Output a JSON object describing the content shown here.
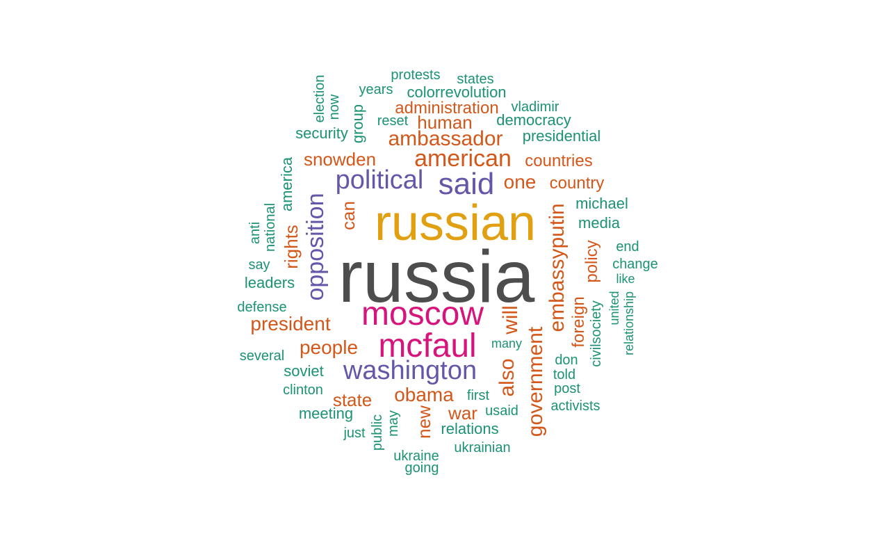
{
  "colors": {
    "gray": "#4d4d4d",
    "gold": "#e0a012",
    "magenta": "#d6147c",
    "purple": "#6257a8",
    "orange": "#d4571a",
    "green": "#1b9274"
  },
  "words": [
    {
      "text": "russia",
      "color": "gray",
      "rotated": false
    },
    {
      "text": "russian",
      "color": "gold",
      "rotated": false
    },
    {
      "text": "moscow",
      "color": "magenta",
      "rotated": false
    },
    {
      "text": "mcfaul",
      "color": "magenta",
      "rotated": false
    },
    {
      "text": "washington",
      "color": "purple",
      "rotated": false
    },
    {
      "text": "said",
      "color": "purple",
      "rotated": false
    },
    {
      "text": "political",
      "color": "purple",
      "rotated": false
    },
    {
      "text": "opposition",
      "color": "purple",
      "rotated": true
    },
    {
      "text": "american",
      "color": "orange",
      "rotated": false
    },
    {
      "text": "ambassador",
      "color": "orange",
      "rotated": false
    },
    {
      "text": "embassyputin",
      "color": "orange",
      "rotated": true
    },
    {
      "text": "government",
      "color": "orange",
      "rotated": true
    },
    {
      "text": "president",
      "color": "orange",
      "rotated": false
    },
    {
      "text": "people",
      "color": "orange",
      "rotated": false
    },
    {
      "text": "obama",
      "color": "orange",
      "rotated": false
    },
    {
      "text": "one",
      "color": "orange",
      "rotated": false
    },
    {
      "text": "also",
      "color": "orange",
      "rotated": true
    },
    {
      "text": "will",
      "color": "orange",
      "rotated": true
    },
    {
      "text": "snowden",
      "color": "orange",
      "rotated": false
    },
    {
      "text": "rights",
      "color": "orange",
      "rotated": true
    },
    {
      "text": "can",
      "color": "orange",
      "rotated": true
    },
    {
      "text": "state",
      "color": "orange",
      "rotated": false
    },
    {
      "text": "war",
      "color": "orange",
      "rotated": false
    },
    {
      "text": "new",
      "color": "orange",
      "rotated": true
    },
    {
      "text": "human",
      "color": "orange",
      "rotated": false
    },
    {
      "text": "administration",
      "color": "orange",
      "rotated": false
    },
    {
      "text": "countries",
      "color": "orange",
      "rotated": false
    },
    {
      "text": "country",
      "color": "orange",
      "rotated": false
    },
    {
      "text": "policy",
      "color": "orange",
      "rotated": true
    },
    {
      "text": "foreign",
      "color": "orange",
      "rotated": true
    },
    {
      "text": "protests",
      "color": "green",
      "rotated": false
    },
    {
      "text": "states",
      "color": "green",
      "rotated": false
    },
    {
      "text": "years",
      "color": "green",
      "rotated": false
    },
    {
      "text": "colorrevolution",
      "color": "green",
      "rotated": false
    },
    {
      "text": "vladimir",
      "color": "green",
      "rotated": false
    },
    {
      "text": "reset",
      "color": "green",
      "rotated": false
    },
    {
      "text": "democracy",
      "color": "green",
      "rotated": false
    },
    {
      "text": "security",
      "color": "green",
      "rotated": false
    },
    {
      "text": "presidential",
      "color": "green",
      "rotated": false
    },
    {
      "text": "election",
      "color": "green",
      "rotated": true
    },
    {
      "text": "now",
      "color": "green",
      "rotated": true
    },
    {
      "text": "group",
      "color": "green",
      "rotated": true
    },
    {
      "text": "america",
      "color": "green",
      "rotated": true
    },
    {
      "text": "national",
      "color": "green",
      "rotated": true
    },
    {
      "text": "anti",
      "color": "green",
      "rotated": true
    },
    {
      "text": "michael",
      "color": "green",
      "rotated": false
    },
    {
      "text": "media",
      "color": "green",
      "rotated": false
    },
    {
      "text": "end",
      "color": "green",
      "rotated": false
    },
    {
      "text": "change",
      "color": "green",
      "rotated": false
    },
    {
      "text": "like",
      "color": "green",
      "rotated": false
    },
    {
      "text": "say",
      "color": "green",
      "rotated": false
    },
    {
      "text": "leaders",
      "color": "green",
      "rotated": false
    },
    {
      "text": "defense",
      "color": "green",
      "rotated": false
    },
    {
      "text": "united",
      "color": "green",
      "rotated": true
    },
    {
      "text": "relationship",
      "color": "green",
      "rotated": true
    },
    {
      "text": "civilsociety",
      "color": "green",
      "rotated": true
    },
    {
      "text": "many",
      "color": "green",
      "rotated": false
    },
    {
      "text": "don",
      "color": "green",
      "rotated": false
    },
    {
      "text": "told",
      "color": "green",
      "rotated": false
    },
    {
      "text": "post",
      "color": "green",
      "rotated": false
    },
    {
      "text": "activists",
      "color": "green",
      "rotated": false
    },
    {
      "text": "several",
      "color": "green",
      "rotated": false
    },
    {
      "text": "soviet",
      "color": "green",
      "rotated": false
    },
    {
      "text": "clinton",
      "color": "green",
      "rotated": false
    },
    {
      "text": "meeting",
      "color": "green",
      "rotated": false
    },
    {
      "text": "first",
      "color": "green",
      "rotated": false
    },
    {
      "text": "usaid",
      "color": "green",
      "rotated": false
    },
    {
      "text": "relations",
      "color": "green",
      "rotated": false
    },
    {
      "text": "just",
      "color": "green",
      "rotated": false
    },
    {
      "text": "public",
      "color": "green",
      "rotated": true
    },
    {
      "text": "may",
      "color": "green",
      "rotated": true
    },
    {
      "text": "ukraine",
      "color": "green",
      "rotated": false
    },
    {
      "text": "ukrainian",
      "color": "green",
      "rotated": false
    },
    {
      "text": "going",
      "color": "green",
      "rotated": false
    }
  ]
}
